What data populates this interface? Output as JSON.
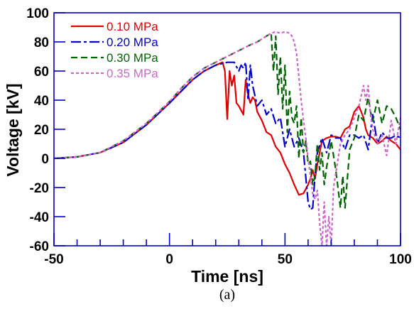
{
  "chart_data": {
    "type": "line",
    "xlabel": "Time [ns]",
    "ylabel": "Voltage [kV]",
    "caption": "(a)",
    "xlim": [
      -50,
      100
    ],
    "ylim": [
      -60,
      100
    ],
    "x_ticks": [
      "-50",
      "0",
      "50",
      "100"
    ],
    "y_ticks": [
      "100",
      "80",
      "60",
      "40",
      "20",
      "0",
      "-20",
      "-40",
      "-60"
    ],
    "grid": false,
    "legend_position": "top-left",
    "series": [
      {
        "name": "0.10 MPa",
        "color": "#e00000",
        "dash": "solid",
        "x": [
          -50,
          -40,
          -30,
          -20,
          -10,
          0,
          5,
          10,
          15,
          20,
          23,
          24,
          25,
          26,
          27,
          28,
          29,
          30,
          32,
          33,
          34,
          35,
          36,
          37,
          38,
          40,
          42,
          44,
          46,
          48,
          50,
          52,
          54,
          56,
          58,
          60,
          61,
          62,
          63,
          64,
          66,
          68,
          70,
          72,
          74,
          76,
          78,
          80,
          82,
          84,
          85,
          86,
          88,
          90,
          92,
          94,
          96,
          98,
          100
        ],
        "y": [
          0,
          1,
          4,
          11,
          23,
          38,
          46,
          54,
          60,
          64,
          66,
          60,
          27,
          60,
          50,
          57,
          38,
          36,
          30,
          54,
          44,
          38,
          42,
          40,
          32,
          26,
          18,
          16,
          8,
          4,
          -4,
          -10,
          -18,
          -25,
          -24,
          -18,
          -14,
          -8,
          -14,
          -4,
          12,
          14,
          15,
          15,
          14,
          20,
          22,
          32,
          36,
          28,
          20,
          16,
          14,
          10,
          12,
          15,
          12,
          10,
          6
        ]
      },
      {
        "name": "0.20 MPa",
        "color": "#0000cc",
        "dash": "14,4,4,4",
        "x": [
          -50,
          -40,
          -30,
          -20,
          -10,
          0,
          5,
          10,
          15,
          20,
          25,
          28,
          30,
          31,
          32,
          33,
          34,
          35,
          36,
          38,
          40,
          42,
          44,
          46,
          48,
          50,
          52,
          54,
          56,
          58,
          60,
          61,
          62,
          63,
          64,
          66,
          68,
          70,
          72,
          74,
          76,
          78,
          80,
          82,
          84,
          86,
          88,
          90,
          92,
          94,
          96,
          98,
          100
        ],
        "y": [
          0,
          1,
          4,
          11,
          23,
          38,
          46,
          54,
          60,
          64,
          66,
          66,
          60,
          64,
          62,
          66,
          40,
          64,
          50,
          36,
          40,
          30,
          34,
          24,
          28,
          8,
          20,
          8,
          14,
          4,
          -30,
          -35,
          -34,
          -12,
          4,
          14,
          4,
          16,
          14,
          14,
          6,
          16,
          16,
          14,
          16,
          6,
          30,
          10,
          18,
          14,
          14,
          16,
          14
        ]
      },
      {
        "name": "0.30 MPa",
        "color": "#006400",
        "dash": "9,5",
        "x": [
          -50,
          -40,
          -30,
          -20,
          -10,
          0,
          5,
          10,
          15,
          20,
          25,
          30,
          35,
          38,
          40,
          42,
          44,
          45,
          46,
          47,
          48,
          49,
          50,
          51,
          52,
          53,
          54,
          55,
          56,
          57,
          58,
          59,
          60,
          61,
          62,
          63,
          64,
          65,
          66,
          67,
          68,
          70,
          72,
          74,
          75,
          76,
          78,
          80,
          82,
          84,
          86,
          87,
          88,
          90,
          92,
          94,
          96,
          98,
          100
        ],
        "y": [
          0,
          1,
          4,
          12,
          24,
          39,
          48,
          56,
          62,
          66,
          70,
          74,
          78,
          80,
          82,
          84,
          86,
          60,
          84,
          44,
          70,
          34,
          64,
          18,
          46,
          28,
          24,
          36,
          0,
          28,
          4,
          12,
          -4,
          -2,
          -18,
          -12,
          10,
          -8,
          4,
          -18,
          -6,
          12,
          -8,
          -34,
          -12,
          -34,
          6,
          14,
          30,
          26,
          42,
          32,
          26,
          40,
          24,
          36,
          34,
          28,
          20
        ]
      },
      {
        "name": "0.35 MPa",
        "color": "#cc66cc",
        "dash": "4,3",
        "x": [
          -50,
          -40,
          -30,
          -20,
          -10,
          0,
          5,
          10,
          15,
          20,
          25,
          30,
          35,
          38,
          40,
          42,
          44,
          46,
          48,
          50,
          52,
          53,
          54,
          55,
          56,
          57,
          58,
          59,
          60,
          61,
          62,
          63,
          64,
          65,
          66,
          67,
          68,
          69,
          70,
          71,
          72,
          74,
          76,
          78,
          80,
          82,
          84,
          85,
          86,
          87,
          88,
          90,
          92,
          94,
          96,
          98,
          100
        ],
        "y": [
          0,
          1,
          4,
          12,
          24,
          39,
          48,
          56,
          62,
          66,
          70,
          74,
          78,
          80,
          82,
          84,
          86,
          87,
          86,
          87,
          86,
          84,
          80,
          72,
          56,
          40,
          26,
          14,
          0,
          -12,
          -24,
          -28,
          -22,
          -44,
          -60,
          -30,
          -60,
          -40,
          -60,
          -20,
          -10,
          10,
          16,
          20,
          28,
          36,
          50,
          40,
          50,
          30,
          20,
          10,
          16,
          2,
          26,
          10,
          28
        ]
      }
    ]
  }
}
